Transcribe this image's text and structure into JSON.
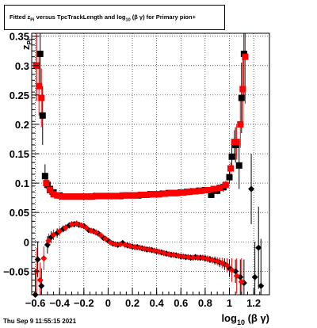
{
  "title": {
    "prefix": "Fitted",
    "z_main": "z",
    "z_sub": "Pi",
    "middle": "versus TpcTrackLength and log",
    "log_sub": "10",
    "suffix": "(β γ) for Primary pion+"
  },
  "footer": {
    "date": "Thu Sep  9 11:55:15 2021"
  },
  "colors": {
    "black_series": "#000000",
    "red_series": "#ff0000",
    "grid": "#000000"
  },
  "chart_data": {
    "type": "scatter",
    "title": "Fitted z_Pi versus TpcTrackLength and log_10(β γ) for Primary pion+",
    "xlabel": {
      "main": "log",
      "sub": "10",
      "rest": " (β γ)"
    },
    "ylabel": {
      "main": "z",
      "sub": "Pi"
    },
    "xlim": [
      -0.63,
      1.33
    ],
    "ylim": [
      -0.09,
      0.355
    ],
    "grid": true,
    "xticks": [
      -0.6,
      -0.4,
      -0.2,
      0,
      0.2,
      0.4,
      0.6,
      0.8,
      1,
      1.2
    ],
    "xtick_labels": [
      "−0.6",
      "−0.4",
      "−0.2",
      "0",
      "0.2",
      "0.4",
      "0.6",
      "0.8",
      "1",
      "1.2"
    ],
    "yticks": [
      -0.05,
      0,
      0.05,
      0.1,
      0.15,
      0.2,
      0.25,
      0.3,
      0.35
    ],
    "ytick_labels": [
      "−0.05",
      "0",
      "0.05",
      "0.1",
      "0.15",
      "0.2",
      "0.25",
      "0.3",
      "0.35"
    ],
    "series": [
      {
        "marker": "square",
        "color": "#000000",
        "points": [
          [
            -0.59,
            0.3,
            0.06
          ],
          [
            -0.56,
            0.32,
            0.06
          ],
          [
            -0.54,
            0.215,
            0.05
          ],
          [
            -0.52,
            0.112,
            0.02
          ],
          [
            -0.5,
            0.097,
            0.01
          ],
          [
            -0.48,
            0.09,
            0.01
          ],
          [
            -0.45,
            0.084,
            0.005
          ],
          [
            -0.4,
            0.079,
            0.004
          ],
          [
            -0.35,
            0.077,
            0.003
          ],
          [
            -0.3,
            0.077,
            0.003
          ],
          [
            -0.25,
            0.077,
            0.003
          ],
          [
            -0.2,
            0.077,
            0.003
          ],
          [
            -0.15,
            0.077,
            0.003
          ],
          [
            -0.1,
            0.078,
            0.003
          ],
          [
            -0.05,
            0.078,
            0.003
          ],
          [
            0.0,
            0.078,
            0.003
          ],
          [
            0.05,
            0.078,
            0.003
          ],
          [
            0.1,
            0.078,
            0.003
          ],
          [
            0.15,
            0.079,
            0.003
          ],
          [
            0.2,
            0.079,
            0.003
          ],
          [
            0.25,
            0.079,
            0.003
          ],
          [
            0.3,
            0.08,
            0.003
          ],
          [
            0.35,
            0.081,
            0.003
          ],
          [
            0.4,
            0.081,
            0.003
          ],
          [
            0.45,
            0.082,
            0.003
          ],
          [
            0.5,
            0.083,
            0.003
          ],
          [
            0.55,
            0.083,
            0.003
          ],
          [
            0.6,
            0.084,
            0.003
          ],
          [
            0.65,
            0.085,
            0.003
          ],
          [
            0.7,
            0.086,
            0.003
          ],
          [
            0.75,
            0.087,
            0.004
          ],
          [
            0.8,
            0.088,
            0.004
          ],
          [
            0.85,
            0.08,
            0.005
          ],
          [
            0.9,
            0.087,
            0.006
          ],
          [
            0.95,
            0.093,
            0.008
          ],
          [
            1.0,
            0.11,
            0.01
          ],
          [
            1.02,
            0.145,
            0.02
          ],
          [
            1.05,
            0.165,
            0.03
          ],
          [
            1.08,
            0.13,
            0.04
          ],
          [
            1.1,
            0.245,
            0.06
          ],
          [
            1.12,
            0.32,
            0.08
          ]
        ]
      },
      {
        "marker": "square",
        "color": "#ff0000",
        "points": [
          [
            -0.59,
            0.3,
            0.06
          ],
          [
            -0.57,
            0.265,
            0.05
          ],
          [
            -0.55,
            0.245,
            0.05
          ],
          [
            -0.51,
            0.1,
            0.01
          ],
          [
            -0.48,
            0.088,
            0.006
          ],
          [
            -0.45,
            0.081,
            0.005
          ],
          [
            -0.42,
            0.079,
            0.004
          ],
          [
            -0.38,
            0.077,
            0.003
          ],
          [
            -0.33,
            0.077,
            0.003
          ],
          [
            -0.28,
            0.077,
            0.003
          ],
          [
            -0.23,
            0.077,
            0.003
          ],
          [
            -0.18,
            0.077,
            0.003
          ],
          [
            -0.13,
            0.077,
            0.003
          ],
          [
            -0.08,
            0.078,
            0.003
          ],
          [
            -0.03,
            0.078,
            0.003
          ],
          [
            0.02,
            0.078,
            0.003
          ],
          [
            0.07,
            0.078,
            0.003
          ],
          [
            0.12,
            0.079,
            0.003
          ],
          [
            0.17,
            0.079,
            0.003
          ],
          [
            0.22,
            0.079,
            0.003
          ],
          [
            0.27,
            0.08,
            0.003
          ],
          [
            0.32,
            0.08,
            0.003
          ],
          [
            0.37,
            0.081,
            0.003
          ],
          [
            0.42,
            0.081,
            0.003
          ],
          [
            0.47,
            0.082,
            0.003
          ],
          [
            0.52,
            0.083,
            0.003
          ],
          [
            0.57,
            0.083,
            0.003
          ],
          [
            0.62,
            0.084,
            0.003
          ],
          [
            0.67,
            0.085,
            0.003
          ],
          [
            0.72,
            0.086,
            0.003
          ],
          [
            0.77,
            0.087,
            0.003
          ],
          [
            0.82,
            0.088,
            0.004
          ],
          [
            0.87,
            0.09,
            0.004
          ],
          [
            0.92,
            0.092,
            0.005
          ],
          [
            0.97,
            0.097,
            0.007
          ],
          [
            1.01,
            0.125,
            0.01
          ],
          [
            1.04,
            0.17,
            0.02
          ],
          [
            1.06,
            0.17,
            0.03
          ],
          [
            1.09,
            0.2,
            0.04
          ],
          [
            1.11,
            0.26,
            0.06
          ],
          [
            1.13,
            0.315,
            0.08
          ]
        ]
      },
      {
        "marker": "circle",
        "color": "#000000",
        "points": [
          [
            -0.6,
            -0.09,
            0.04
          ],
          [
            -0.58,
            -0.03,
            0.03
          ],
          [
            -0.55,
            -0.075,
            0.03
          ],
          [
            -0.5,
            -0.005,
            0.015
          ],
          [
            -0.47,
            0.008,
            0.01
          ],
          [
            -0.42,
            0.015,
            0.008
          ],
          [
            -0.37,
            0.022,
            0.006
          ],
          [
            -0.32,
            0.028,
            0.005
          ],
          [
            -0.28,
            0.03,
            0.005
          ],
          [
            -0.24,
            0.029,
            0.005
          ],
          [
            -0.2,
            0.027,
            0.004
          ],
          [
            -0.16,
            0.02,
            0.004
          ],
          [
            -0.12,
            0.018,
            0.004
          ],
          [
            -0.08,
            0.014,
            0.004
          ],
          [
            -0.04,
            0.007,
            0.004
          ],
          [
            0.0,
            0.002,
            0.004
          ],
          [
            0.04,
            -0.003,
            0.004
          ],
          [
            0.08,
            -0.005,
            0.004
          ],
          [
            0.12,
            -0.002,
            0.004
          ],
          [
            0.16,
            -0.006,
            0.004
          ],
          [
            0.2,
            -0.008,
            0.004
          ],
          [
            0.24,
            -0.009,
            0.004
          ],
          [
            0.28,
            -0.011,
            0.004
          ],
          [
            0.32,
            -0.013,
            0.004
          ],
          [
            0.36,
            -0.014,
            0.004
          ],
          [
            0.4,
            -0.016,
            0.004
          ],
          [
            0.44,
            -0.018,
            0.004
          ],
          [
            0.48,
            -0.02,
            0.004
          ],
          [
            0.52,
            -0.022,
            0.004
          ],
          [
            0.56,
            -0.023,
            0.004
          ],
          [
            0.6,
            -0.025,
            0.004
          ],
          [
            0.64,
            -0.026,
            0.004
          ],
          [
            0.68,
            -0.027,
            0.005
          ],
          [
            0.72,
            -0.026,
            0.005
          ],
          [
            0.76,
            -0.027,
            0.005
          ],
          [
            0.8,
            -0.028,
            0.005
          ],
          [
            0.84,
            -0.03,
            0.006
          ],
          [
            0.88,
            -0.032,
            0.007
          ],
          [
            0.92,
            -0.035,
            0.008
          ],
          [
            0.96,
            -0.038,
            0.01
          ],
          [
            1.0,
            -0.045,
            0.015
          ],
          [
            1.05,
            -0.05,
            0.02
          ],
          [
            1.09,
            -0.06,
            0.03
          ],
          [
            1.12,
            -0.07,
            0.04
          ],
          [
            1.18,
            0.09,
            0.06
          ],
          [
            1.21,
            -0.06,
            0.06
          ],
          [
            1.24,
            -0.01,
            0.07
          ],
          [
            1.26,
            -0.075,
            0.08
          ]
        ]
      },
      {
        "marker": "circle",
        "color": "#ff0000",
        "points": [
          [
            -0.59,
            -0.05,
            0.04
          ],
          [
            -0.56,
            -0.065,
            0.03
          ],
          [
            -0.53,
            -0.028,
            0.02
          ],
          [
            -0.49,
            0.002,
            0.012
          ],
          [
            -0.45,
            0.012,
            0.009
          ],
          [
            -0.4,
            0.018,
            0.007
          ],
          [
            -0.35,
            0.024,
            0.006
          ],
          [
            -0.3,
            0.03,
            0.005
          ],
          [
            -0.26,
            0.031,
            0.005
          ],
          [
            -0.22,
            0.028,
            0.005
          ],
          [
            -0.18,
            0.024,
            0.004
          ],
          [
            -0.14,
            0.019,
            0.004
          ],
          [
            -0.1,
            0.016,
            0.004
          ],
          [
            -0.06,
            0.011,
            0.004
          ],
          [
            -0.02,
            0.005,
            0.004
          ],
          [
            0.02,
            -0.001,
            0.004
          ],
          [
            0.06,
            -0.004,
            0.004
          ],
          [
            0.1,
            -0.004,
            0.004
          ],
          [
            0.14,
            -0.005,
            0.004
          ],
          [
            0.18,
            -0.007,
            0.004
          ],
          [
            0.22,
            -0.009,
            0.004
          ],
          [
            0.26,
            -0.01,
            0.004
          ],
          [
            0.3,
            -0.012,
            0.004
          ],
          [
            0.34,
            -0.013,
            0.004
          ],
          [
            0.38,
            -0.015,
            0.004
          ],
          [
            0.42,
            -0.017,
            0.004
          ],
          [
            0.46,
            -0.019,
            0.004
          ],
          [
            0.5,
            -0.021,
            0.004
          ],
          [
            0.54,
            -0.022,
            0.004
          ],
          [
            0.58,
            -0.024,
            0.004
          ],
          [
            0.62,
            -0.025,
            0.004
          ],
          [
            0.66,
            -0.026,
            0.004
          ],
          [
            0.7,
            -0.027,
            0.005
          ],
          [
            0.74,
            -0.027,
            0.005
          ],
          [
            0.78,
            -0.027,
            0.005
          ],
          [
            0.82,
            -0.029,
            0.006
          ],
          [
            0.86,
            -0.031,
            0.006
          ],
          [
            0.9,
            -0.033,
            0.007
          ],
          [
            0.94,
            -0.036,
            0.009
          ],
          [
            0.98,
            -0.04,
            0.012
          ],
          [
            1.02,
            -0.048,
            0.02
          ],
          [
            1.06,
            -0.058,
            0.03
          ],
          [
            1.1,
            -0.068,
            0.04
          ]
        ]
      }
    ]
  }
}
